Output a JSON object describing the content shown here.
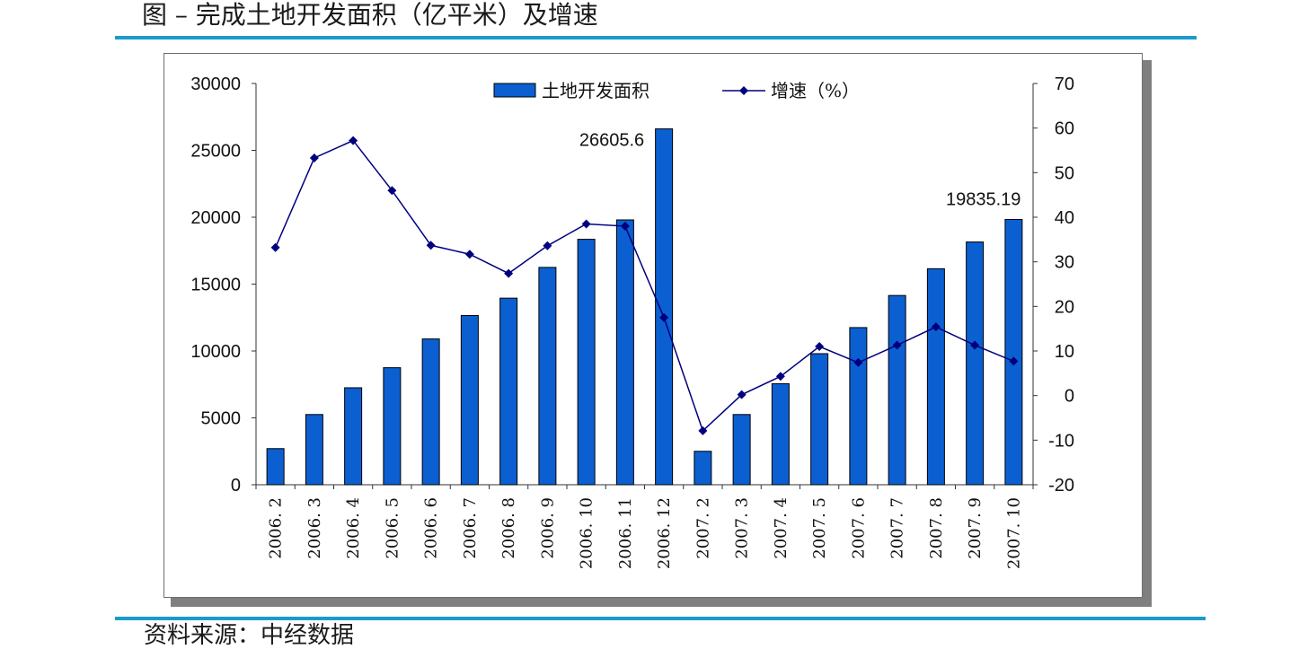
{
  "title": "图 – 完成土地开发面积（亿平米）及增速",
  "footer": "资料来源：中经数据",
  "colors": {
    "rule": "#1a9bcb",
    "bar": "#0b5fd0",
    "bar_edge": "#000000",
    "line": "#00007f"
  },
  "chart_data": {
    "type": "bar+line",
    "categories": [
      "2006.2",
      "2006.3",
      "2006.4",
      "2006.5",
      "2006.6",
      "2006.7",
      "2006.8",
      "2006.9",
      "2006.10",
      "2006.11",
      "2006.12",
      "2007.2",
      "2007.3",
      "2007.4",
      "2007.5",
      "2007.6",
      "2007.7",
      "2007.8",
      "2007.9",
      "2007.10"
    ],
    "series": [
      {
        "name": "土地开发面积",
        "type": "bar",
        "axis": "left",
        "values": [
          2700,
          5250,
          7250,
          8750,
          10900,
          12650,
          13950,
          16250,
          18350,
          19800,
          26605.6,
          2500,
          5250,
          7550,
          9800,
          11750,
          14150,
          16150,
          18150,
          19835.19
        ]
      },
      {
        "name": "增速（%）",
        "type": "line",
        "axis": "right",
        "values": [
          33.2,
          53.3,
          57.2,
          46.0,
          33.7,
          31.7,
          27.4,
          33.6,
          38.5,
          38.0,
          17.5,
          -7.9,
          0.2,
          4.3,
          11.0,
          7.4,
          11.3,
          15.4,
          11.3,
          7.7
        ]
      }
    ],
    "y_left": {
      "min": 0,
      "max": 30000,
      "ticks": [
        "0",
        "5000",
        "10000",
        "15000",
        "20000",
        "25000",
        "30000"
      ]
    },
    "y_right": {
      "min": -20,
      "max": 70,
      "ticks": [
        "-20",
        "-10",
        "0",
        "10",
        "20",
        "30",
        "40",
        "50",
        "60",
        "70"
      ]
    },
    "annotations": [
      {
        "category_index": 10,
        "text": "26605.6"
      },
      {
        "category_index": 19,
        "text": "19835.19"
      }
    ],
    "legend": "top-center",
    "grid": false
  }
}
